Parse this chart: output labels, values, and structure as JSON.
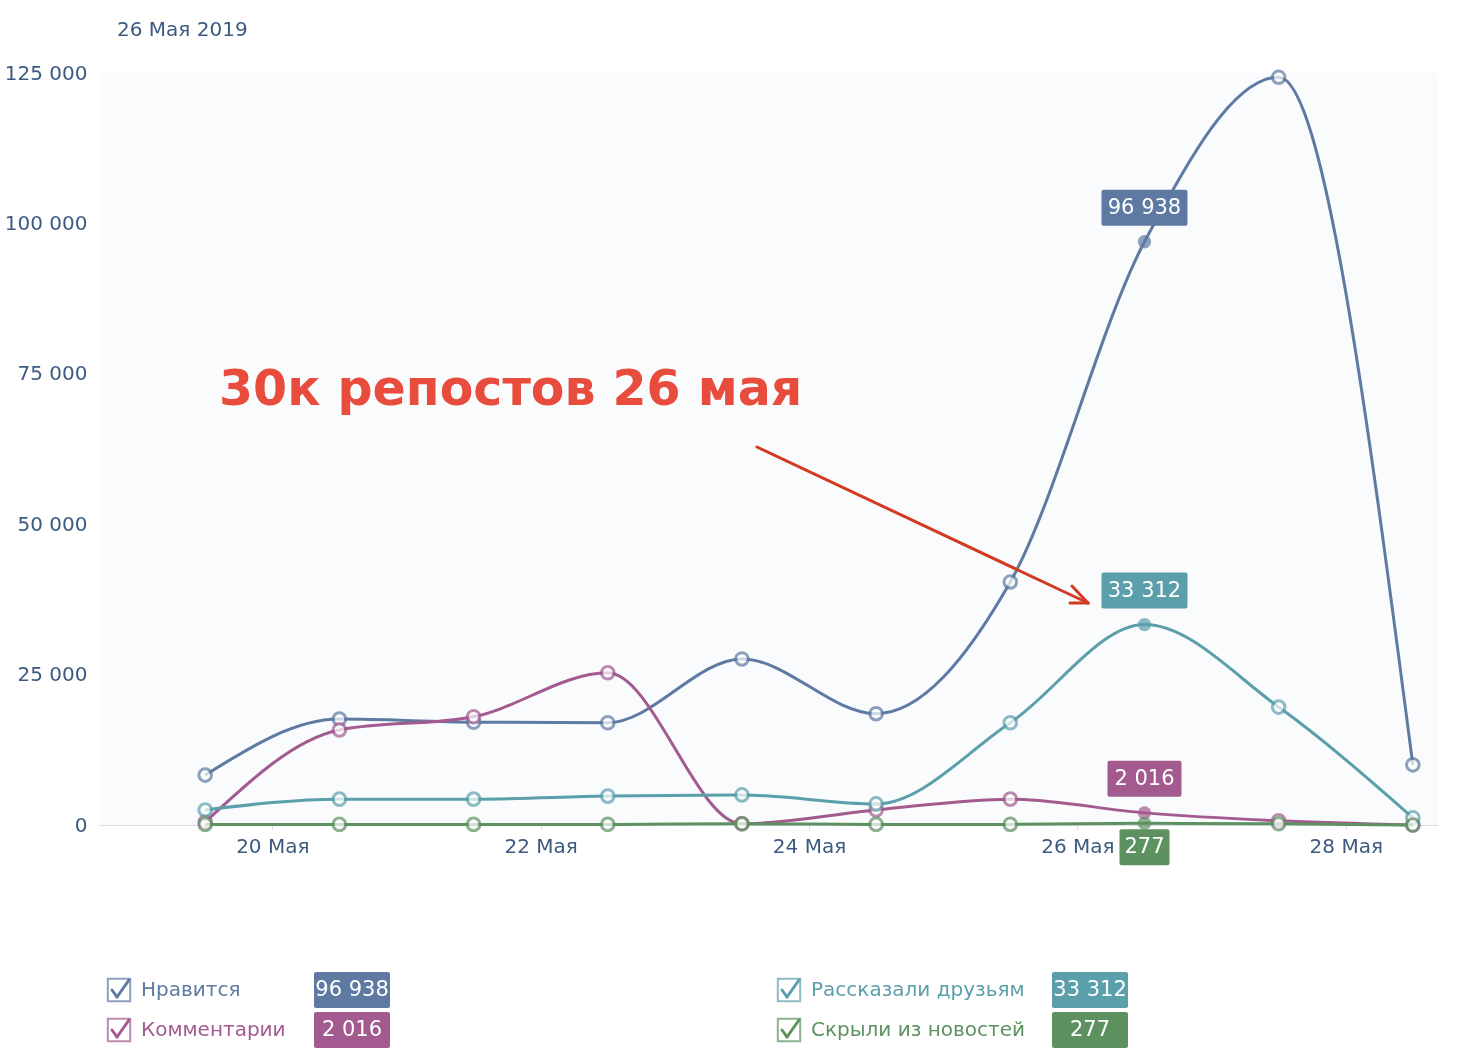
{
  "chart_data": {
    "type": "line",
    "title": "26 Мая 2019",
    "x": [
      "2019-05-19T12:00",
      "2019-05-20T12:00",
      "2019-05-21T12:00",
      "2019-05-22T12:00",
      "2019-05-23T12:00",
      "2019-05-24T12:00",
      "2019-05-25T12:00",
      "2019-05-26T12:00",
      "2019-05-27T12:00",
      "2019-05-28T12:00"
    ],
    "series": [
      {
        "name": "Нравится",
        "color": "#5e7aa3",
        "values": [
          8300,
          17600,
          17100,
          17000,
          27600,
          18500,
          40400,
          96938,
          124300,
          10000
        ],
        "value_labels": [
          null,
          null,
          null,
          null,
          null,
          null,
          null,
          "96 938",
          null,
          null
        ]
      },
      {
        "name": "Комментарии",
        "color": "#a25a8f",
        "values": [
          500,
          15800,
          18000,
          25300,
          200,
          2500,
          4300,
          2016,
          700,
          0
        ],
        "value_labels": [
          null,
          null,
          null,
          null,
          null,
          null,
          null,
          "2 016",
          null,
          null
        ]
      },
      {
        "name": "Рассказали друзьям",
        "color": "#5b9faa",
        "values": [
          2500,
          4300,
          4300,
          4800,
          5000,
          3500,
          17000,
          33312,
          19600,
          1200
        ],
        "value_labels": [
          null,
          null,
          null,
          null,
          null,
          null,
          null,
          "33 312",
          null,
          null
        ]
      },
      {
        "name": "Скрыли из новостей",
        "color": "#5d9160",
        "values": [
          100,
          100,
          100,
          100,
          200,
          100,
          100,
          277,
          200,
          0
        ],
        "value_labels": [
          null,
          null,
          null,
          null,
          null,
          null,
          null,
          "277",
          null,
          null
        ]
      }
    ],
    "xlim": [
      "2019-05-18T17:00",
      "2019-05-28T16:30"
    ],
    "xticks": [
      {
        "value": "2019-05-20",
        "label": "20 Мая"
      },
      {
        "value": "2019-05-22",
        "label": "22 Мая"
      },
      {
        "value": "2019-05-24",
        "label": "24 Мая"
      },
      {
        "value": "2019-05-26",
        "label": "26 Мая"
      },
      {
        "value": "2019-05-28",
        "label": "28 Мая"
      }
    ],
    "ylim": [
      0,
      125000
    ],
    "yticks": [
      {
        "value": 0,
        "label": "0"
      },
      {
        "value": 25000,
        "label": "25 000"
      },
      {
        "value": 50000,
        "label": "50 000"
      },
      {
        "value": 75000,
        "label": "75 000"
      },
      {
        "value": 100000,
        "label": "100 000"
      },
      {
        "value": 125000,
        "label": "125 000"
      }
    ],
    "annotations": [
      "30к репостов 26 мая"
    ],
    "grid": true,
    "legend": "bottom",
    "marker": "circle",
    "line_style": "solid"
  }
}
